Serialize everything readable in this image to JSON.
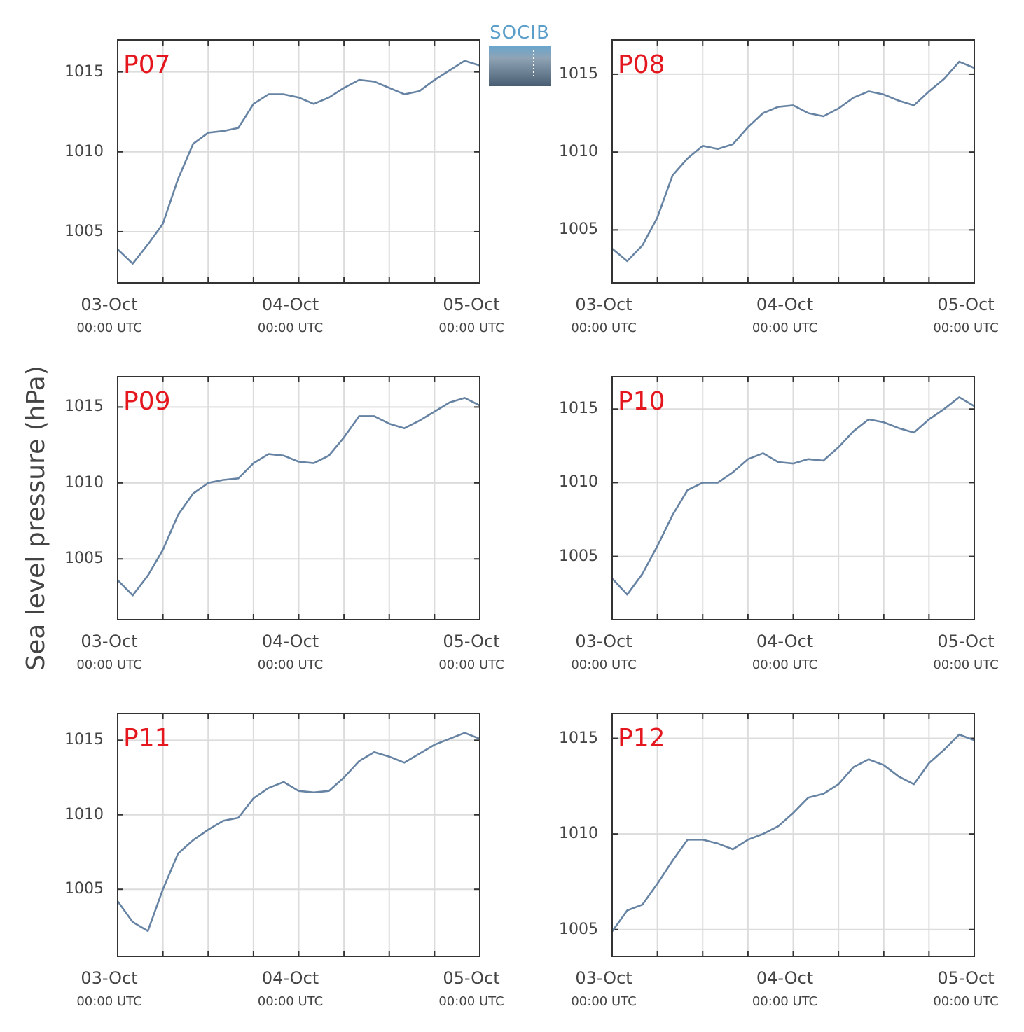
{
  "logo": "SOCIB",
  "ylabel": "Sea level pressure (hPa)",
  "chart_data": [
    {
      "type": "line",
      "title": "P07",
      "color": "#6683a3",
      "grid": true,
      "x": [
        0,
        2,
        4,
        6,
        8,
        10,
        12,
        14,
        16,
        18,
        20,
        22,
        24,
        26,
        28,
        30,
        32,
        34,
        36,
        38,
        40,
        42,
        44,
        46,
        48
      ],
      "values": [
        1003.9,
        1003.0,
        1004.2,
        1005.5,
        1008.3,
        1010.5,
        1011.2,
        1011.3,
        1011.5,
        1013.0,
        1013.6,
        1013.6,
        1013.4,
        1013.0,
        1013.4,
        1014.0,
        1014.5,
        1014.4,
        1014.0,
        1013.6,
        1013.8,
        1014.5,
        1015.1,
        1015.7,
        1015.4
      ],
      "xlim": [
        0,
        48
      ],
      "xticks": [
        {
          "value": 0,
          "label": "03-Oct\n00:00 UTC"
        },
        {
          "value": 24,
          "label": "04-Oct\n00:00 UTC"
        },
        {
          "value": 48,
          "label": "05-Oct\n00:00 UTC"
        }
      ],
      "xminorticks": [
        6,
        12,
        18,
        30,
        36,
        42
      ],
      "ylim": [
        1001.8,
        1017.0
      ],
      "yticks": [
        1005,
        1010,
        1015
      ]
    },
    {
      "type": "line",
      "title": "P08",
      "color": "#6683a3",
      "grid": true,
      "x": [
        0,
        2,
        4,
        6,
        8,
        10,
        12,
        14,
        16,
        18,
        20,
        22,
        24,
        26,
        28,
        30,
        32,
        34,
        36,
        38,
        40,
        42,
        44,
        46,
        48
      ],
      "values": [
        1003.8,
        1003.0,
        1004.0,
        1005.8,
        1008.5,
        1009.6,
        1010.4,
        1010.2,
        1010.5,
        1011.6,
        1012.5,
        1012.9,
        1013.0,
        1012.5,
        1012.3,
        1012.8,
        1013.5,
        1013.9,
        1013.7,
        1013.3,
        1013.0,
        1013.9,
        1014.7,
        1015.8,
        1015.4
      ],
      "xlim": [
        0,
        48
      ],
      "xticks": [
        {
          "value": 0,
          "label": "03-Oct\n00:00 UTC"
        },
        {
          "value": 24,
          "label": "04-Oct\n00:00 UTC"
        },
        {
          "value": 48,
          "label": "05-Oct\n00:00 UTC"
        }
      ],
      "xminorticks": [
        6,
        12,
        18,
        30,
        36,
        42
      ],
      "ylim": [
        1001.6,
        1017.2
      ],
      "yticks": [
        1005,
        1010,
        1015
      ]
    },
    {
      "type": "line",
      "title": "P09",
      "color": "#6683a3",
      "grid": true,
      "x": [
        0,
        2,
        4,
        6,
        8,
        10,
        12,
        14,
        16,
        18,
        20,
        22,
        24,
        26,
        28,
        30,
        32,
        34,
        36,
        38,
        40,
        42,
        44,
        46,
        48
      ],
      "values": [
        1003.6,
        1002.6,
        1003.9,
        1005.6,
        1007.9,
        1009.3,
        1010.0,
        1010.2,
        1010.3,
        1011.3,
        1011.9,
        1011.8,
        1011.4,
        1011.3,
        1011.8,
        1013.0,
        1014.4,
        1014.4,
        1013.9,
        1013.6,
        1014.1,
        1014.7,
        1015.3,
        1015.6,
        1015.1
      ],
      "xlim": [
        0,
        48
      ],
      "xticks": [
        {
          "value": 0,
          "label": "03-Oct\n00:00 UTC"
        },
        {
          "value": 24,
          "label": "04-Oct\n00:00 UTC"
        },
        {
          "value": 48,
          "label": "05-Oct\n00:00 UTC"
        }
      ],
      "xminorticks": [
        6,
        12,
        18,
        30,
        36,
        42
      ],
      "ylim": [
        1001.0,
        1017.0
      ],
      "yticks": [
        1005,
        1010,
        1015
      ]
    },
    {
      "type": "line",
      "title": "P10",
      "color": "#6683a3",
      "grid": true,
      "x": [
        0,
        2,
        4,
        6,
        8,
        10,
        12,
        14,
        16,
        18,
        20,
        22,
        24,
        26,
        28,
        30,
        32,
        34,
        36,
        38,
        40,
        42,
        44,
        46,
        48
      ],
      "values": [
        1003.5,
        1002.4,
        1003.8,
        1005.7,
        1007.8,
        1009.5,
        1010.0,
        1010.0,
        1010.7,
        1011.6,
        1012.0,
        1011.4,
        1011.3,
        1011.6,
        1011.5,
        1012.4,
        1013.5,
        1014.3,
        1014.1,
        1013.7,
        1013.4,
        1014.3,
        1015.0,
        1015.8,
        1015.2
      ],
      "xlim": [
        0,
        48
      ],
      "xticks": [
        {
          "value": 0,
          "label": "03-Oct\n00:00 UTC"
        },
        {
          "value": 24,
          "label": "04-Oct\n00:00 UTC"
        },
        {
          "value": 48,
          "label": "05-Oct\n00:00 UTC"
        }
      ],
      "xminorticks": [
        6,
        12,
        18,
        30,
        36,
        42
      ],
      "ylim": [
        1000.7,
        1017.2
      ],
      "yticks": [
        1005,
        1010,
        1015
      ]
    },
    {
      "type": "line",
      "title": "P11",
      "color": "#6683a3",
      "grid": true,
      "x": [
        0,
        2,
        4,
        6,
        8,
        10,
        12,
        14,
        16,
        18,
        20,
        22,
        24,
        26,
        28,
        30,
        32,
        34,
        36,
        38,
        40,
        42,
        44,
        46,
        48
      ],
      "values": [
        1004.2,
        1002.8,
        1002.2,
        1005.0,
        1007.4,
        1008.3,
        1009.0,
        1009.6,
        1009.8,
        1011.1,
        1011.8,
        1012.2,
        1011.6,
        1011.5,
        1011.6,
        1012.5,
        1013.6,
        1014.2,
        1013.9,
        1013.5,
        1014.1,
        1014.7,
        1015.1,
        1015.5,
        1015.1
      ],
      "xlim": [
        0,
        48
      ],
      "xticks": [
        {
          "value": 0,
          "label": "03-Oct\n00:00 UTC"
        },
        {
          "value": 24,
          "label": "04-Oct\n00:00 UTC"
        },
        {
          "value": 48,
          "label": "05-Oct\n00:00 UTC"
        }
      ],
      "xminorticks": [
        6,
        12,
        18,
        30,
        36,
        42
      ],
      "ylim": [
        1000.5,
        1016.8
      ],
      "yticks": [
        1005,
        1010,
        1015
      ]
    },
    {
      "type": "line",
      "title": "P12",
      "color": "#6683a3",
      "grid": true,
      "x": [
        0,
        2,
        4,
        6,
        8,
        10,
        12,
        14,
        16,
        18,
        20,
        22,
        24,
        26,
        28,
        30,
        32,
        34,
        36,
        38,
        40,
        42,
        44,
        46,
        48
      ],
      "values": [
        1004.9,
        1006.0,
        1006.3,
        1007.4,
        1008.6,
        1009.7,
        1009.7,
        1009.5,
        1009.2,
        1009.7,
        1010.0,
        1010.4,
        1011.1,
        1011.9,
        1012.1,
        1012.6,
        1013.5,
        1013.9,
        1013.6,
        1013.0,
        1012.6,
        1013.7,
        1014.4,
        1015.2,
        1014.9
      ],
      "xlim": [
        0,
        48
      ],
      "xticks": [
        {
          "value": 0,
          "label": "03-Oct\n00:00 UTC"
        },
        {
          "value": 24,
          "label": "04-Oct\n00:00 UTC"
        },
        {
          "value": 48,
          "label": "05-Oct\n00:00 UTC"
        }
      ],
      "xminorticks": [
        6,
        12,
        18,
        30,
        36,
        42
      ],
      "ylim": [
        1003.6,
        1016.3
      ],
      "yticks": [
        1005,
        1010,
        1015
      ]
    }
  ]
}
